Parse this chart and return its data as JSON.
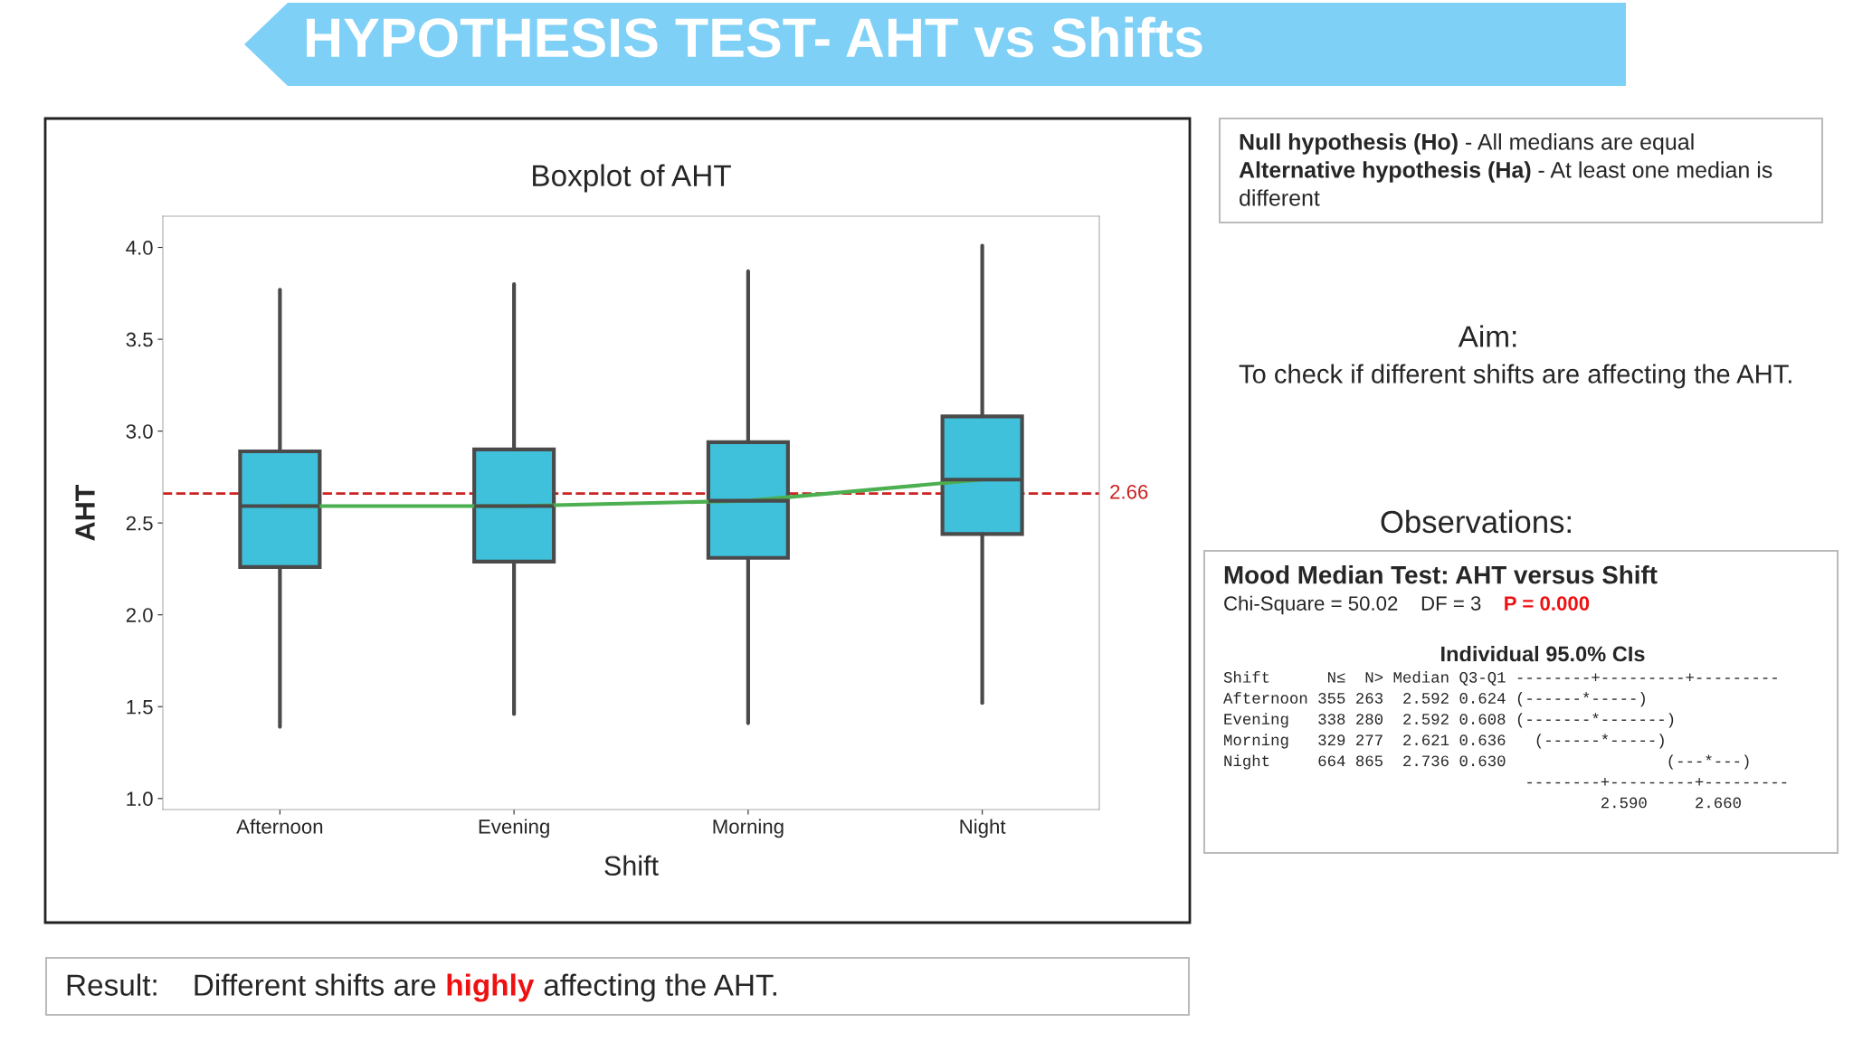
{
  "chart_data": {
    "type": "box",
    "title": "Boxplot of AHT",
    "xlabel": "Shift",
    "ylabel": "AHT",
    "categories": [
      "Afternoon",
      "Evening",
      "Morning",
      "Night"
    ],
    "boxes": [
      {
        "low": 1.39,
        "q1": 2.26,
        "median": 2.592,
        "q3": 2.89,
        "high": 3.77
      },
      {
        "low": 1.46,
        "q1": 2.29,
        "median": 2.592,
        "q3": 2.9,
        "high": 3.8
      },
      {
        "low": 1.41,
        "q1": 2.31,
        "median": 2.621,
        "q3": 2.94,
        "high": 3.87
      },
      {
        "low": 1.52,
        "q1": 2.44,
        "median": 2.736,
        "q3": 3.08,
        "high": 4.01
      }
    ],
    "color": "#3fc1dc",
    "series": [
      {
        "type": "line",
        "color": "#4caf50",
        "values": [
          2.592,
          2.592,
          2.621,
          2.736
        ]
      }
    ],
    "ref_lines": [
      {
        "axis": "y",
        "value": 2.66,
        "label": "2.66",
        "color": "#cc2222",
        "line_style": "dashed"
      }
    ],
    "ylim": [
      0.94,
      4.17
    ],
    "yticks": [
      {
        "value": 1.0,
        "label": "1.0"
      },
      {
        "value": 1.5,
        "label": "1.5"
      },
      {
        "value": 2.0,
        "label": "2.0"
      },
      {
        "value": 2.5,
        "label": "2.5"
      },
      {
        "value": 3.0,
        "label": "3.0"
      },
      {
        "value": 3.5,
        "label": "3.5"
      },
      {
        "value": 4.0,
        "label": "4.0"
      }
    ],
    "grid": false,
    "legend": false,
    "annotations": [
      "HYPOTHESIS TEST- AHT vs Shifts",
      "Null hypothesis (Ho)",
      " - All medians are equal",
      "Alternative hypothesis (Ha)",
      " - At least one median is",
      "different",
      "Aim:",
      "To check if different shifts are affecting the AHT.",
      "Observations:",
      "Mood Median Test: AHT versus Shift",
      "Chi-Square = 50.02    DF = 3    ",
      "P = 0.000",
      "Individual 95.0% CIs",
      "Shift      N≤  N> Median Q3-Q1 --------+---------+---------\nAfternoon 355 263  2.592 0.624 (------*-----)\nEvening   338 280  2.592 0.608 (-------*-------)\nMorning   329 277  2.621 0.636   (------*-----)\nNight     664 865  2.736 0.630                 (---*---)\n                                --------+---------+---------\n                                        2.590     2.660",
      "Result:    Different shifts are ",
      "highly",
      " affecting the AHT."
    ]
  }
}
